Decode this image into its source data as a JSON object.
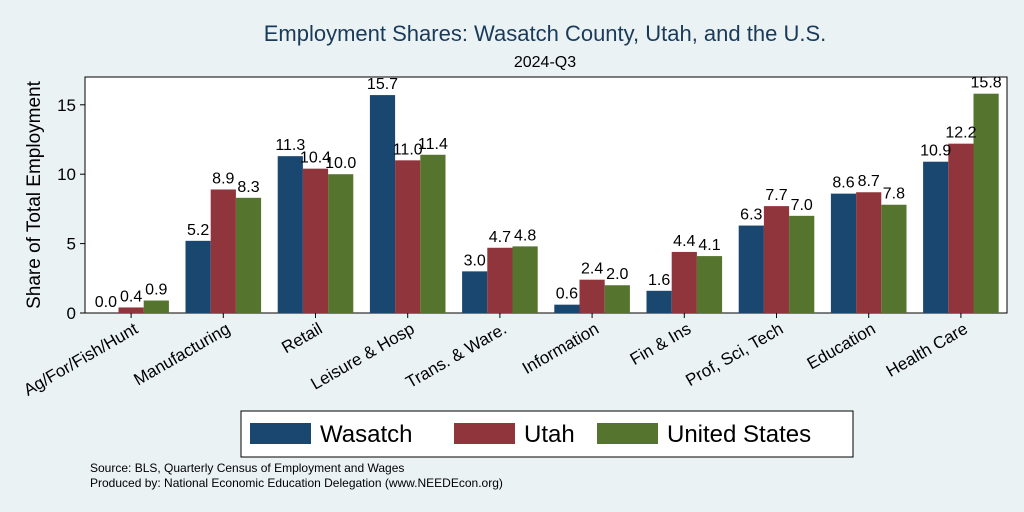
{
  "chart_data": {
    "type": "bar",
    "title": "Employment Shares: Wasatch County, Utah, and the U.S.",
    "subtitle": "2024-Q3",
    "xlabel": "",
    "ylabel": "Share of Total Employment",
    "ylim": [
      0,
      17
    ],
    "yticks": [
      0,
      5,
      10,
      15
    ],
    "grid": false,
    "legend_position": "bottom",
    "categories": [
      "Ag/For/Fish/Hunt",
      "Manufacturing",
      "Retail",
      "Leisure & Hosp",
      "Trans. & Ware.",
      "Information",
      "Fin & Ins",
      "Prof, Sci, Tech",
      "Education",
      "Health Care"
    ],
    "series": [
      {
        "name": "Wasatch",
        "color": "#1a476f",
        "values": [
          0.0,
          5.2,
          11.3,
          15.7,
          3.0,
          0.6,
          1.6,
          6.3,
          8.6,
          10.9
        ],
        "labels": [
          "0.0",
          "5.2",
          "11.3",
          "15.7",
          "3.0",
          "0.6",
          "1.6",
          "6.3",
          "8.6",
          "10.9"
        ]
      },
      {
        "name": "Utah",
        "color": "#90353b",
        "values": [
          0.4,
          8.9,
          10.4,
          11.0,
          4.7,
          2.4,
          4.4,
          7.7,
          8.7,
          12.2
        ],
        "labels": [
          "0.4",
          "8.9",
          "10.4",
          "11.0",
          "4.7",
          "2.4",
          "4.4",
          "7.7",
          "8.7",
          "12.2"
        ]
      },
      {
        "name": "United States",
        "color": "#55752f",
        "values": [
          0.9,
          8.3,
          10.0,
          11.4,
          4.8,
          2.0,
          4.1,
          7.0,
          7.8,
          15.8
        ],
        "labels": [
          "0.9",
          "8.3",
          "10.0",
          "11.4",
          "4.8",
          "2.0",
          "4.1",
          "7.0",
          "7.8",
          "15.8"
        ]
      }
    ]
  },
  "footer": {
    "source": "Source: BLS, Quarterly Census of Employment and Wages",
    "produced_by": "Produced by: National Economic Education Delegation (www.NEEDEcon.org)"
  }
}
